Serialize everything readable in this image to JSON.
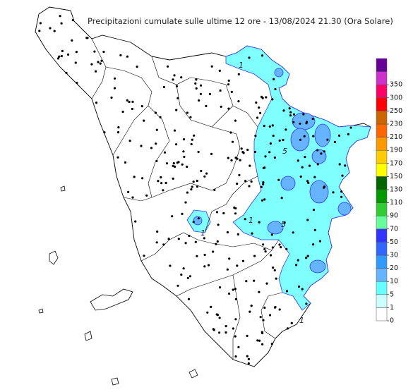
{
  "title": "Precipitazioni cumulate sulle ultime 12 ore - 13/08/2024 21.30 (Ora Solare)",
  "legend": {
    "levels": [
      0,
      1,
      5,
      10,
      20,
      30,
      50,
      70,
      90,
      110,
      130,
      150,
      170,
      190,
      210,
      230,
      250,
      300,
      350
    ],
    "colors": [
      "#ffffff",
      "#ccffff",
      "#66ffff",
      "#66b3ff",
      "#3399ff",
      "#3366ff",
      "#3333ff",
      "#66ff99",
      "#33cc33",
      "#009900",
      "#006600",
      "#ffff00",
      "#ffcc00",
      "#ff9900",
      "#ff6600",
      "#cc6600",
      "#ff0000",
      "#ff0066",
      "#cc33cc",
      "#660099"
    ]
  },
  "contour_labels": [
    "1",
    "5",
    "1",
    "5",
    "1",
    "1"
  ]
}
